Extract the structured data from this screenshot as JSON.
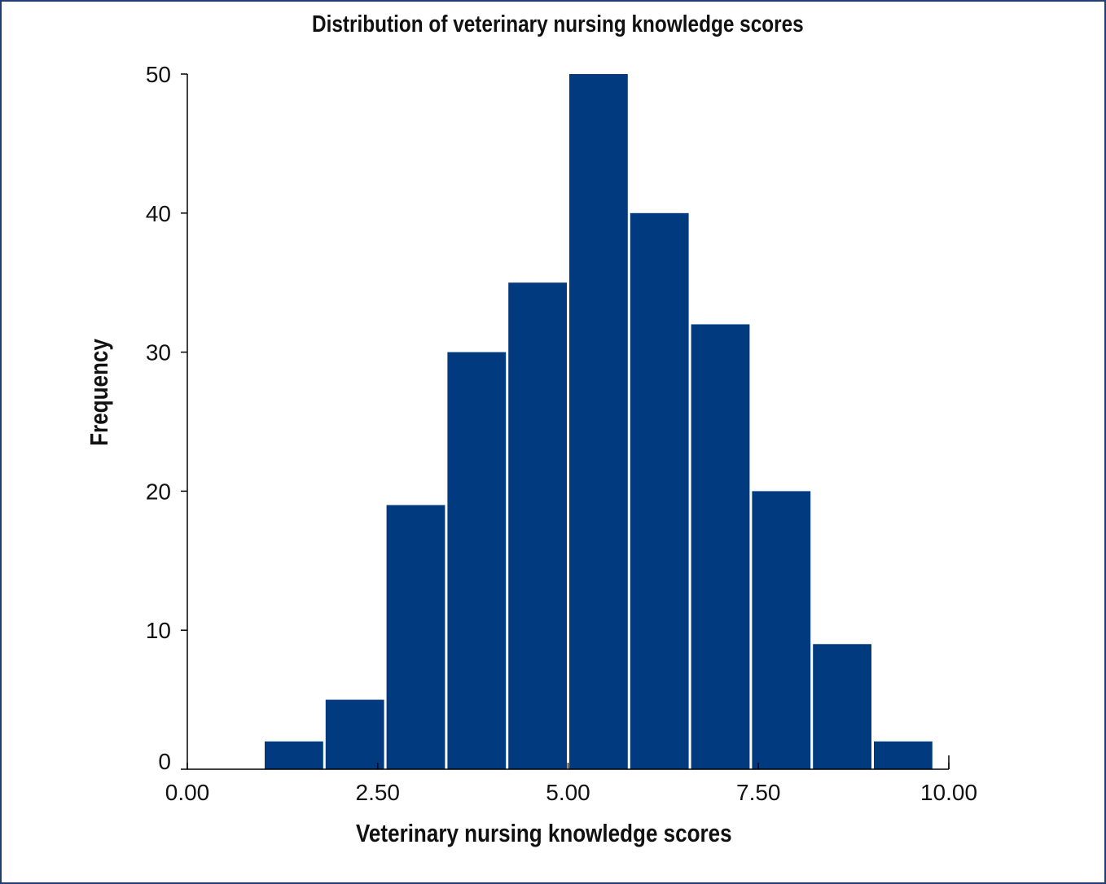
{
  "chart_data": {
    "type": "bar",
    "title": "Distribution of veterinary nursing knowledge scores",
    "xlabel": "Veterinary nursing knowledge scores",
    "ylabel": "Frequency",
    "x_ticks": [
      "0.00",
      "2.50",
      "5.00",
      "7.50",
      "10.00"
    ],
    "y_ticks": [
      "0",
      "10",
      "20",
      "30",
      "40",
      "50"
    ],
    "xlim": [
      0,
      10
    ],
    "ylim": [
      0,
      50
    ],
    "bin_width": 0.8,
    "bins": [
      {
        "start": 1.0,
        "end": 1.8,
        "value": 2
      },
      {
        "start": 1.8,
        "end": 2.6,
        "value": 5
      },
      {
        "start": 2.6,
        "end": 3.4,
        "value": 19
      },
      {
        "start": 3.4,
        "end": 4.2,
        "value": 30
      },
      {
        "start": 4.2,
        "end": 5.0,
        "value": 35
      },
      {
        "start": 5.0,
        "end": 5.8,
        "value": 50
      },
      {
        "start": 5.8,
        "end": 6.6,
        "value": 40
      },
      {
        "start": 6.6,
        "end": 7.4,
        "value": 32
      },
      {
        "start": 7.4,
        "end": 8.2,
        "value": 20
      },
      {
        "start": 8.2,
        "end": 9.0,
        "value": 9
      },
      {
        "start": 9.0,
        "end": 9.8,
        "value": 2
      }
    ],
    "grid": false,
    "bar_color": "#013a7f",
    "frame_color": "#1f3f73"
  }
}
